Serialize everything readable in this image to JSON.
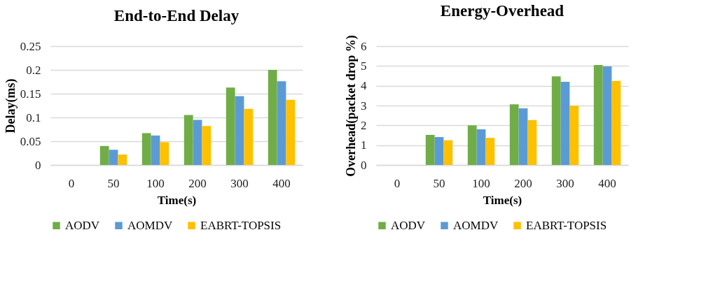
{
  "chart_data": [
    {
      "type": "bar",
      "title": "End-to-End Delay",
      "xlabel": "Time(s)",
      "ylabel": "Delay(ms)",
      "categories": [
        "0",
        "50",
        "100",
        "200",
        "300",
        "400"
      ],
      "ylim": [
        0,
        0.25
      ],
      "yticks": [
        0,
        0.05,
        0.1,
        0.15,
        0.2,
        0.25
      ],
      "grid": "y",
      "legend": "bottom",
      "series": [
        {
          "name": "AODV",
          "color": "#70ad47",
          "values": [
            0,
            0.04,
            0.067,
            0.105,
            0.163,
            0.2
          ]
        },
        {
          "name": "AOMDV",
          "color": "#5b9bd5",
          "values": [
            0,
            0.032,
            0.062,
            0.095,
            0.145,
            0.176
          ]
        },
        {
          "name": "EABRT-TOPSIS",
          "color": "#ffc000",
          "values": [
            0,
            0.022,
            0.048,
            0.082,
            0.118,
            0.137
          ]
        }
      ]
    },
    {
      "type": "bar",
      "title": "Energy-Overhead",
      "xlabel": "Time(s)",
      "ylabel": "Overhead(packet drop %)",
      "categories": [
        "0",
        "50",
        "100",
        "200",
        "300",
        "400"
      ],
      "ylim": [
        0,
        6
      ],
      "yticks": [
        0,
        1,
        2,
        3,
        4,
        5,
        6
      ],
      "grid": "y",
      "legend": "bottom",
      "series": [
        {
          "name": "AODV",
          "color": "#70ad47",
          "values": [
            0,
            1.52,
            2.0,
            3.06,
            4.47,
            5.05
          ]
        },
        {
          "name": "AOMDV",
          "color": "#5b9bd5",
          "values": [
            0,
            1.41,
            1.8,
            2.86,
            4.2,
            4.98
          ]
        },
        {
          "name": "EABRT-TOPSIS",
          "color": "#ffc000",
          "values": [
            0,
            1.25,
            1.37,
            2.27,
            2.99,
            4.24
          ]
        }
      ]
    }
  ]
}
